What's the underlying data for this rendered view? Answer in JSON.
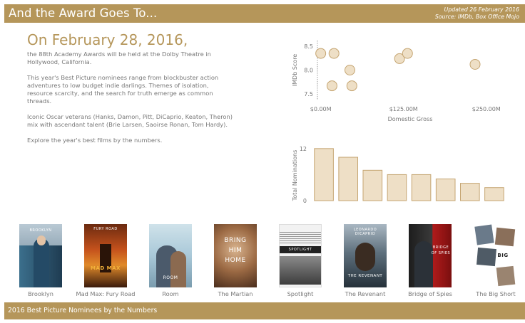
{
  "header": {
    "title": "And the Award Goes To...",
    "updated": "Updated 26 February 2016",
    "source": "Source: IMDb, Box Office Mojo"
  },
  "intro": {
    "heading": "On February 28, 2016,",
    "paragraphs": [
      "the 88th Academy Awards will be held at the Dolby Theatre in Hollywood, California.",
      "This year's Best Picture nominees range from blockbuster action adventures to low budget indie darlings. Themes of isolation, resource scarcity, and the search for truth emerge as common threads.",
      "Iconic Oscar veterans (Hanks, Damon, Pitt, DiCaprio, Keaton, Theron) mix with ascendant talent (Brie Larsen, Saoirse Ronan, Tom Hardy).",
      "Explore the year's best films by the numbers."
    ]
  },
  "chart_data": [
    {
      "type": "scatter",
      "xlabel": "Domestic Gross",
      "ylabel": "IMDb Score",
      "x_ticks": [
        0,
        125,
        250
      ],
      "x_tick_labels": [
        "$0.00M",
        "$125.00M",
        "$250.00M"
      ],
      "y_ticks": [
        7.5,
        8.0,
        8.5
      ],
      "y_tick_labels": [
        "7.5",
        "8.0",
        "8.5"
      ],
      "xlim": [
        -5,
        275
      ],
      "ylim": [
        7.38,
        8.62
      ],
      "points": [
        {
          "x": 0,
          "y": 8.35
        },
        {
          "x": 20,
          "y": 8.35
        },
        {
          "x": 17,
          "y": 7.67
        },
        {
          "x": 44,
          "y": 8.0
        },
        {
          "x": 47,
          "y": 7.67
        },
        {
          "x": 119,
          "y": 8.24
        },
        {
          "x": 131,
          "y": 8.35
        },
        {
          "x": 233,
          "y": 8.12
        }
      ],
      "colors": {
        "fill": "#eedfc6",
        "stroke": "#c5a572"
      }
    },
    {
      "type": "bar",
      "ylabel": "Total Nominations",
      "y_ticks": [
        0,
        12
      ],
      "ylim": [
        0,
        12.3
      ],
      "values": [
        12,
        10,
        7,
        6,
        6,
        5,
        4,
        3
      ],
      "colors": {
        "fill": "#eedfc6",
        "stroke": "#c5a572"
      }
    }
  ],
  "posters": [
    {
      "title": "Brooklyn",
      "icon": "brooklyn-poster-image"
    },
    {
      "title": "Mad Max: Fury Road",
      "icon": "mad-max-poster-image"
    },
    {
      "title": "Room",
      "icon": "room-poster-image"
    },
    {
      "title": "The Martian",
      "icon": "martian-poster-image"
    },
    {
      "title": "Spotlight",
      "icon": "spotlight-poster-image"
    },
    {
      "title": "The Revenant",
      "icon": "revenant-poster-image"
    },
    {
      "title": "Bridge of Spies",
      "icon": "bridge-of-spies-poster-image"
    },
    {
      "title": "The Big Short",
      "icon": "big-short-poster-image"
    }
  ],
  "footer": {
    "label": "2016 Best Picture Nominees by the Numbers"
  }
}
